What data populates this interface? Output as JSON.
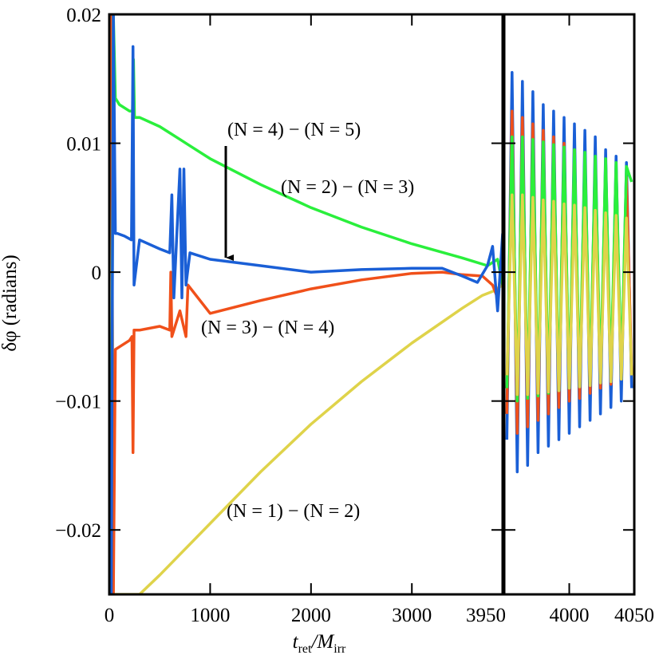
{
  "chart_data": [
    {
      "type": "line",
      "ylabel": "δφ (radians)",
      "xlabel": [
        "t",
        "ret",
        "/M",
        "irr"
      ],
      "xlim": [
        0,
        3900
      ],
      "xticks": [
        0,
        1000,
        2000,
        3000
      ],
      "ylim": [
        -0.025,
        0.02
      ],
      "yticks": [
        {
          "value": 0.02,
          "label": "0.02"
        },
        {
          "value": 0.01,
          "label": "0.01"
        },
        0,
        {
          "value": -0.01,
          "label": "−0.01"
        },
        {
          "value": -0.02,
          "label": "−0.02"
        }
      ],
      "annotations": [
        {
          "text": "(N = 4) − (N = 5)",
          "color": "#1a5fd6"
        },
        {
          "text": "(N = 2) − (N = 3)",
          "color": "#2aef3c"
        },
        {
          "text": "(N = 3) − (N = 4)",
          "color": "#f0501a"
        },
        {
          "text": "(N = 1) − (N = 2)",
          "color": "#dfd34a"
        }
      ],
      "series": [
        {
          "color": "#dfd34a",
          "x": [
            20,
            40,
            270,
            300,
            500,
            1000,
            1500,
            2000,
            2500,
            3000,
            3500,
            3700,
            3800,
            3900
          ],
          "values": [
            0.02,
            -0.025,
            -0.025,
            -0.025,
            -0.0235,
            -0.0195,
            -0.0155,
            -0.0118,
            -0.0085,
            -0.0055,
            -0.0028,
            -0.0018,
            -0.0015,
            -0.001
          ]
        },
        {
          "color": "#f0501a",
          "x": [
            20,
            40,
            60,
            100,
            200,
            225,
            235,
            245,
            300,
            500,
            600,
            610,
            620,
            700,
            760,
            780,
            1000,
            1500,
            2000,
            2500,
            3000,
            3300,
            3500,
            3700,
            3800,
            3850,
            3900
          ],
          "values": [
            0.02,
            -0.025,
            -0.006,
            -0.0058,
            -0.0053,
            -0.005,
            -0.014,
            -0.0045,
            -0.0045,
            -0.0042,
            -0.0045,
            0.0,
            -0.005,
            -0.003,
            -0.005,
            -0.001,
            -0.0032,
            -0.0022,
            -0.0013,
            -0.0006,
            -0.0001,
            0.0,
            -0.0002,
            -0.0003,
            -0.001,
            -0.002,
            0.001
          ]
        },
        {
          "color": "#2aef3c",
          "x": [
            20,
            40,
            60,
            100,
            200,
            230,
            240,
            250,
            300,
            500,
            600,
            700,
            780,
            1000,
            1500,
            2000,
            2500,
            3000,
            3500,
            3750,
            3850,
            3900
          ],
          "values": [
            -0.02,
            0.02,
            0.0135,
            0.013,
            0.0125,
            0.0125,
            0.0165,
            0.012,
            0.012,
            0.0113,
            0.0108,
            0.0103,
            0.0099,
            0.0088,
            0.0068,
            0.005,
            0.0035,
            0.0022,
            0.0011,
            0.0005,
            0.001,
            -0.001
          ]
        },
        {
          "color": "#1a5fd6",
          "x": [
            20,
            40,
            60,
            80,
            150,
            220,
            235,
            245,
            300,
            500,
            600,
            620,
            640,
            700,
            720,
            740,
            760,
            800,
            1000,
            1500,
            2000,
            2500,
            3000,
            3300,
            3500,
            3650,
            3750,
            3800,
            3850,
            3900
          ],
          "values": [
            -0.025,
            0.02,
            0.003,
            0.003,
            0.0028,
            0.0025,
            0.0175,
            -0.001,
            0.0025,
            0.0018,
            0.0015,
            0.006,
            -0.002,
            0.008,
            -0.002,
            0.008,
            -0.001,
            0.0015,
            0.001,
            0.0005,
            0.0,
            0.0002,
            0.0003,
            0.0003,
            -0.0003,
            -0.0008,
            0.0005,
            0.002,
            -0.003,
            0.003
          ]
        }
      ]
    },
    {
      "type": "line",
      "xlim": [
        3950,
        4050
      ],
      "xticks": [
        3950,
        4000,
        4050
      ],
      "x": [
        3952,
        3956,
        3960,
        3964,
        3968,
        3972,
        3976,
        3980,
        3984,
        3988,
        3992,
        3996,
        4000,
        4004,
        4008,
        4012,
        4016,
        4020,
        4024,
        4028,
        4032,
        4036,
        4040,
        4044,
        4048
      ],
      "series": [
        {
          "color": "#1a5fd6",
          "values": [
            -0.013,
            0.0155,
            -0.0155,
            0.0148,
            -0.015,
            0.014,
            -0.014,
            0.013,
            -0.0135,
            0.0125,
            -0.013,
            0.012,
            -0.0125,
            0.0115,
            -0.012,
            0.011,
            -0.0115,
            0.0105,
            -0.011,
            0.0095,
            -0.0105,
            0.009,
            -0.01,
            0.0085,
            -0.009
          ]
        },
        {
          "color": "#f0501a",
          "values": [
            -0.011,
            0.0125,
            -0.0125,
            0.012,
            -0.012,
            0.0115,
            -0.0115,
            0.011,
            -0.011,
            0.0105,
            -0.0105,
            0.01,
            -0.01,
            0.0095,
            -0.0098,
            0.009,
            -0.0094,
            0.0087,
            -0.009,
            0.0082,
            -0.0087,
            0.0078,
            -0.0083,
            0.0074,
            -0.008
          ]
        },
        {
          "color": "#2aef3c",
          "values": [
            -0.009,
            0.0105,
            -0.01,
            0.0105,
            -0.0098,
            0.0103,
            -0.0096,
            0.0101,
            -0.0094,
            0.0099,
            -0.0092,
            0.0097,
            -0.009,
            0.0095,
            -0.0088,
            0.0093,
            -0.0086,
            0.009,
            -0.0084,
            0.0088,
            -0.0082,
            0.0085,
            -0.008,
            0.0082,
            0.007
          ]
        },
        {
          "color": "#dfd34a",
          "values": [
            -0.008,
            0.006,
            -0.0095,
            0.006,
            -0.0095,
            0.0058,
            -0.0094,
            0.0056,
            -0.0093,
            0.0055,
            -0.0092,
            0.0053,
            -0.009,
            0.0052,
            -0.0089,
            0.005,
            -0.0088,
            0.0048,
            -0.0086,
            0.0046,
            -0.0085,
            0.0044,
            -0.0083,
            0.0042,
            -0.008
          ]
        }
      ]
    }
  ]
}
